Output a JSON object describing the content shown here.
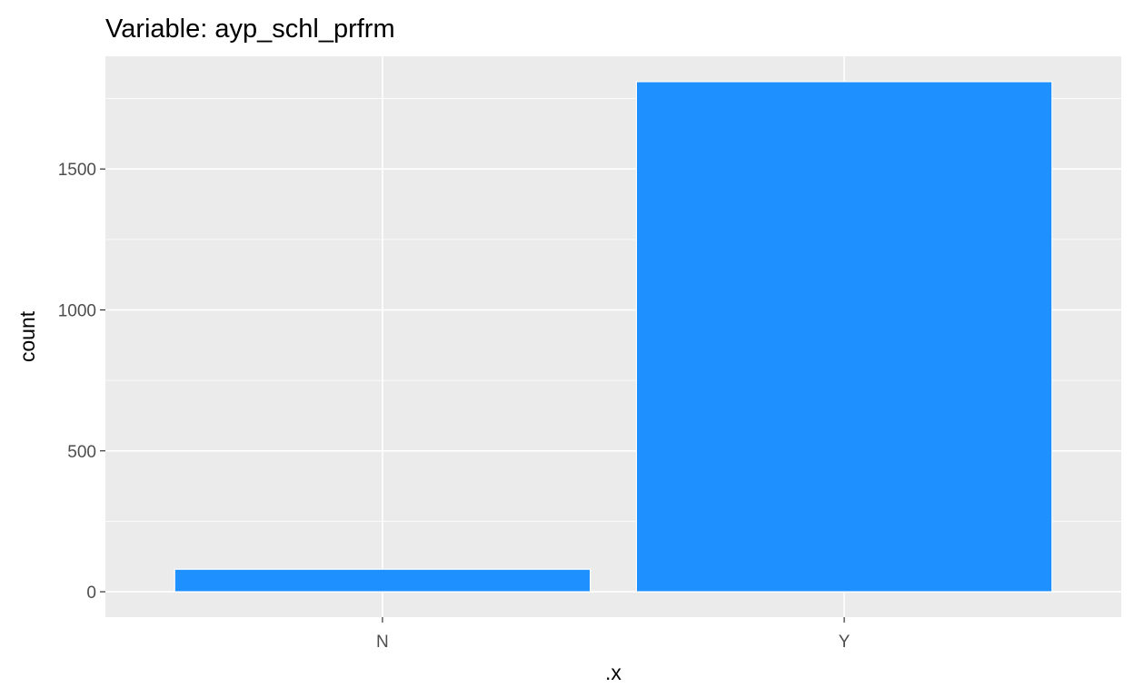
{
  "chart_data": {
    "type": "bar",
    "title": "Variable: ayp_schl_prfrm",
    "xlabel": ".x",
    "ylabel": "count",
    "categories": [
      "N",
      "Y"
    ],
    "values": [
      80,
      1810
    ],
    "ylim": [
      -90,
      1900
    ],
    "yticks": [
      0,
      500,
      1000,
      1500
    ],
    "y_tick_labels": [
      "0",
      "500",
      "1000",
      "1500"
    ],
    "grid": true,
    "legend": "none",
    "colors": {
      "bar_fill": "#1E90FF",
      "bar_outline": "#FFFFFF",
      "panel_background": "#EBEBEB",
      "grid": "#FFFFFF",
      "tick_mark": "#333333"
    }
  }
}
